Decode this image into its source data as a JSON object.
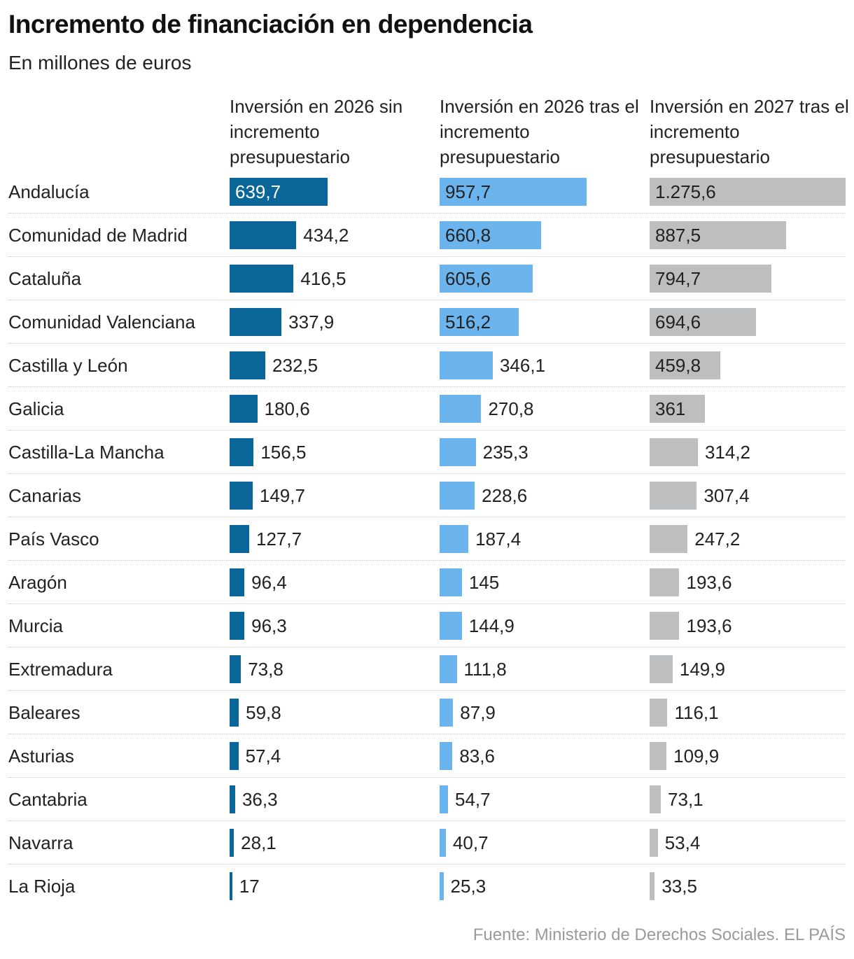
{
  "chart_data": {
    "type": "bar",
    "title": "Incremento de financiación en dependencia",
    "subtitle": "En millones de euros",
    "source": "Fuente: Ministerio de Derechos Sociales. EL PAÍS",
    "categories": [
      "Andalucía",
      "Comunidad de Madrid",
      "Cataluña",
      "Comunidad Valenciana",
      "Castilla y León",
      "Galicia",
      "Castilla-La Mancha",
      "Canarias",
      "País Vasco",
      "Aragón",
      "Murcia",
      "Extremadura",
      "Baleares",
      "Asturias",
      "Cantabria",
      "Navarra",
      "La Rioja"
    ],
    "series": [
      {
        "name": "Inversión en 2026 sin incremento presupuestario",
        "color": "#0a6699",
        "values": [
          639.7,
          434.2,
          416.5,
          337.9,
          232.5,
          180.6,
          156.5,
          149.7,
          127.7,
          96.4,
          96.3,
          73.8,
          59.8,
          57.4,
          36.3,
          28.1,
          17
        ],
        "value_labels": [
          "639,7",
          "434,2",
          "416,5",
          "337,9",
          "232,5",
          "180,6",
          "156,5",
          "149,7",
          "127,7",
          "96,4",
          "96,3",
          "73,8",
          "59,8",
          "57,4",
          "36,3",
          "28,1",
          "17"
        ]
      },
      {
        "name": "Inversión en 2026 tras el incremento presupuestario",
        "color": "#6cb4ee",
        "values": [
          957.7,
          660.8,
          605.6,
          516.2,
          346.1,
          270.8,
          235.3,
          228.6,
          187.4,
          145,
          144.9,
          111.8,
          87.9,
          83.6,
          54.7,
          40.7,
          25.3
        ],
        "value_labels": [
          "957,7",
          "660,8",
          "605,6",
          "516,2",
          "346,1",
          "270,8",
          "235,3",
          "228,6",
          "187,4",
          "145",
          "144,9",
          "111,8",
          "87,9",
          "83,6",
          "54,7",
          "40,7",
          "25,3"
        ]
      },
      {
        "name": "Inversión en 2027 tras el incremento presupuestario",
        "color": "#bcbec0",
        "values": [
          1275.6,
          887.5,
          794.7,
          694.6,
          459.8,
          361,
          314.2,
          307.4,
          247.2,
          193.6,
          193.6,
          149.9,
          116.1,
          109.9,
          73.1,
          53.4,
          33.5
        ],
        "value_labels": [
          "1.275,6",
          "887,5",
          "794,7",
          "694,6",
          "459,8",
          "361",
          "314,2",
          "307,4",
          "247,2",
          "193,6",
          "193,6",
          "149,9",
          "116,1",
          "109,9",
          "73,1",
          "53,4",
          "33,5"
        ]
      }
    ]
  }
}
